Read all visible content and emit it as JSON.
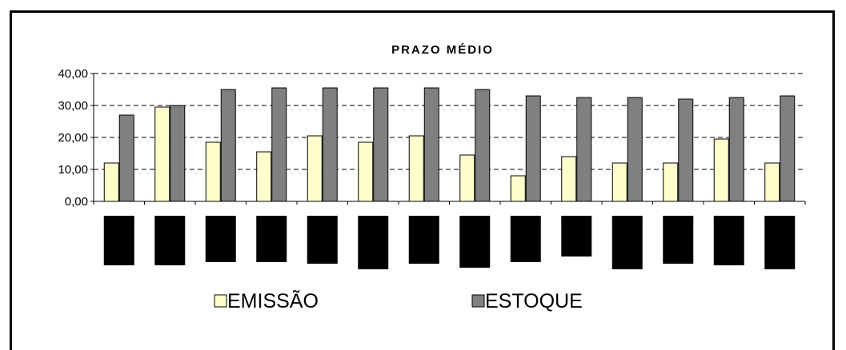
{
  "chart_data": {
    "type": "bar",
    "title": "PRAZO MÉDIO",
    "categories": [
      "",
      "",
      "",
      "",
      "",
      "",
      "",
      "",
      "",
      "",
      "",
      "",
      "",
      ""
    ],
    "series": [
      {
        "name": "EMISSÃO",
        "color": "#ffffcc",
        "values": [
          12,
          29.5,
          18.5,
          15.5,
          20.5,
          18.5,
          20.5,
          14.5,
          8,
          14,
          12,
          12,
          19.5,
          12
        ]
      },
      {
        "name": "ESTOQUE",
        "color": "#808080",
        "values": [
          27,
          30,
          35,
          35.5,
          35.5,
          35.5,
          35.5,
          35,
          33,
          32.5,
          32.5,
          32,
          32.5,
          33
        ]
      }
    ],
    "ylim": [
      0,
      40
    ],
    "yticks": [
      "0,00",
      "10,00",
      "20,00",
      "30,00",
      "40,00"
    ],
    "grid": true,
    "legend": "bottom"
  }
}
